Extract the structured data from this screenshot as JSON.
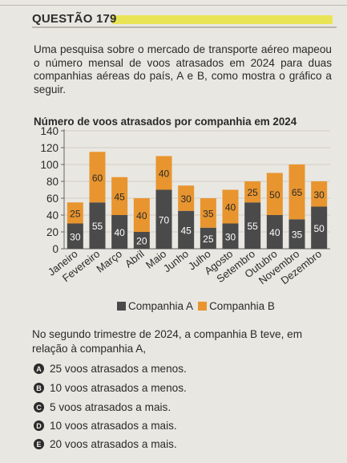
{
  "question": {
    "title": "QUESTÃO 179",
    "intro": "Uma pesquisa sobre o mercado de transporte aéreo mapeou o número mensal de voos atrasados em 2024 para duas companhias aéreas do país, A e B, como mostra o gráfico a seguir.",
    "prompt": "No segundo trimestre de 2024, a companhia B teve, em relação à companhia A,",
    "options": [
      {
        "letter": "A",
        "text": "25 voos atrasados a menos."
      },
      {
        "letter": "B",
        "text": "10 voos atrasados a menos."
      },
      {
        "letter": "C",
        "text": "5 voos atrasados a mais."
      },
      {
        "letter": "D",
        "text": "10 voos atrasados a mais."
      },
      {
        "letter": "E",
        "text": "20 voos atrasados a mais."
      }
    ]
  },
  "chart_data": {
    "type": "bar",
    "stacked": true,
    "title": "Número de voos atrasados por companhia em 2024",
    "categories": [
      "Janeiro",
      "Fevereiro",
      "Março",
      "Abril",
      "Maio",
      "Junho",
      "Julho",
      "Agosto",
      "Setembro",
      "Outubro",
      "Novembro",
      "Dezembro"
    ],
    "series": [
      {
        "name": "Companhia A",
        "color": "#4a4a4a",
        "values": [
          30,
          55,
          40,
          20,
          70,
          45,
          25,
          30,
          55,
          40,
          35,
          50
        ]
      },
      {
        "name": "Companhia B",
        "color": "#e8952f",
        "values": [
          25,
          60,
          45,
          40,
          40,
          30,
          35,
          40,
          25,
          50,
          65,
          30
        ]
      }
    ],
    "yticks": [
      "0",
      "20",
      "40",
      "60",
      "80",
      "100",
      "120",
      "140"
    ],
    "ylim": [
      0,
      140
    ],
    "grid": true,
    "legend_position": "bottom"
  }
}
